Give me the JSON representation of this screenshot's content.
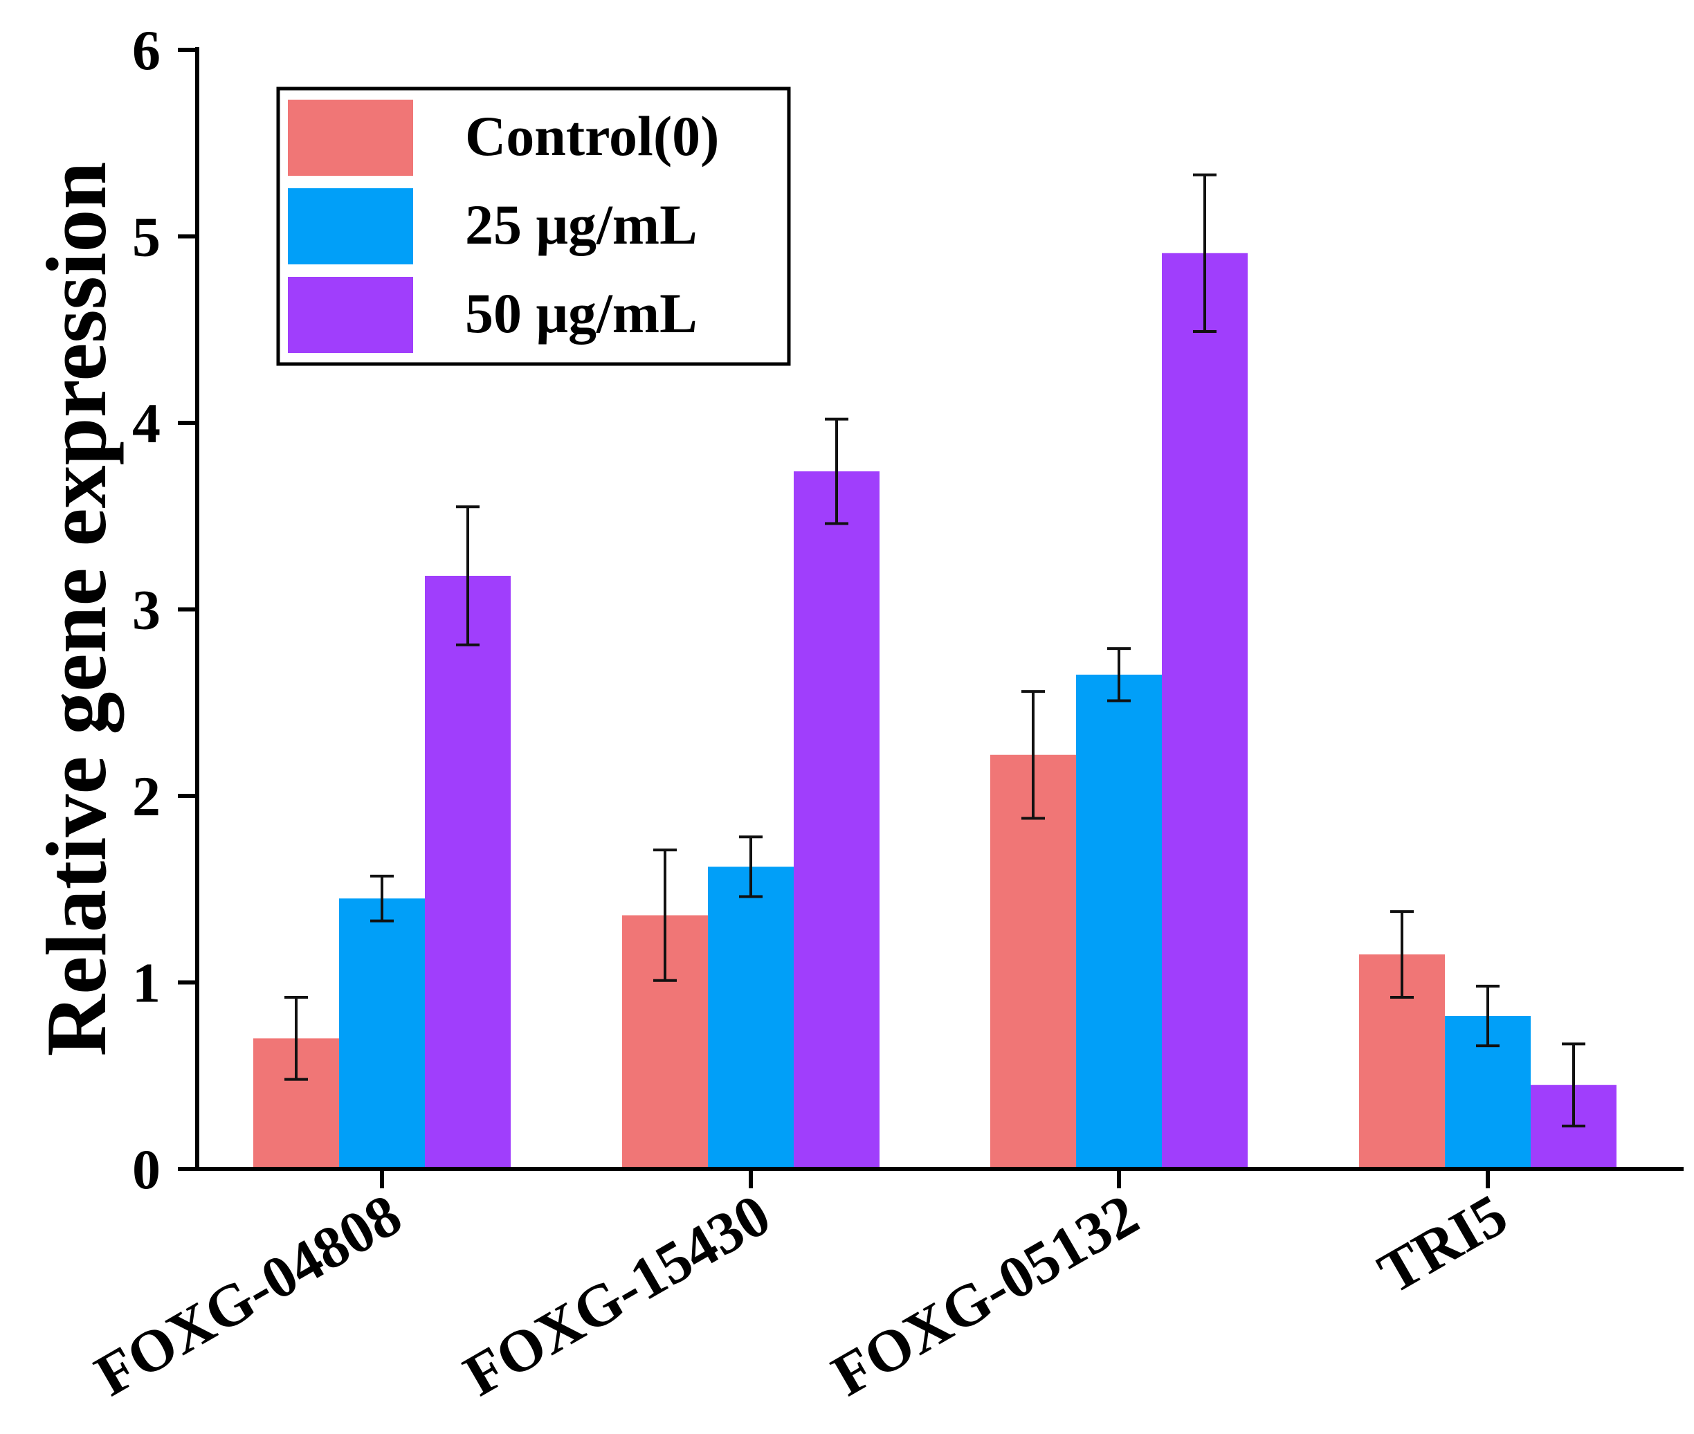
{
  "chart_data": {
    "type": "bar",
    "title": "",
    "xlabel": "",
    "ylabel": "Relative gene expression",
    "ylim": [
      0,
      6
    ],
    "yticks": [
      0,
      1,
      2,
      3,
      4,
      5,
      6
    ],
    "categories": [
      "FOXG-04808",
      "FOXG-15430",
      "FOXG-05132",
      "TRI5"
    ],
    "legend_position": "top-left",
    "series": [
      {
        "name": "Control(0)",
        "color": "#F07676",
        "values": [
          0.7,
          1.36,
          2.22,
          1.15
        ],
        "errors": [
          0.22,
          0.35,
          0.34,
          0.23
        ]
      },
      {
        "name": "25 μg/mL",
        "color": "#019FF8",
        "values": [
          1.45,
          1.62,
          2.65,
          0.82
        ],
        "errors": [
          0.12,
          0.16,
          0.14,
          0.16
        ]
      },
      {
        "name": "50 μg/mL",
        "color": "#A03EFC",
        "values": [
          3.18,
          3.74,
          4.91,
          0.45
        ],
        "errors": [
          0.37,
          0.28,
          0.42,
          0.22
        ]
      }
    ]
  }
}
